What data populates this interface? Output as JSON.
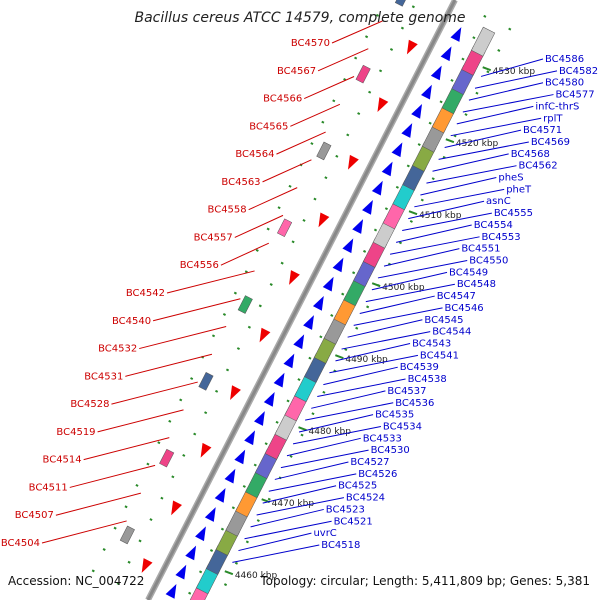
{
  "title": "Bacillus cereus ATCC 14579, complete genome",
  "footer": {
    "accession": "Accession: NC_004722",
    "summary": "Topology: circular; Length: 5,411,809 bp; Genes: 5,381"
  },
  "colors": {
    "reverse_label": "#cc0000",
    "forward_label": "#0000cc",
    "reverse_arrow": "#ee0000",
    "forward_arrow": "#0000ee",
    "backbone": "#888888",
    "tick": "#2a8a2a"
  },
  "ticks": [
    "4530 kbp",
    "4520 kbp",
    "4510 kbp",
    "4500 kbp",
    "4490 kbp",
    "4480 kbp",
    "4470 kbp",
    "4460 kbp"
  ],
  "reverse_labels": [
    "BC4570",
    "BC4567",
    "BC4566",
    "BC4565",
    "BC4564",
    "BC4563",
    "BC4558",
    "BC4557",
    "BC4556",
    "BC4542",
    "BC4540",
    "BC4532",
    "BC4531",
    "BC4528",
    "BC4519",
    "BC4514",
    "BC4511",
    "BC4507",
    "BC4504"
  ],
  "forward_labels": [
    "BC4586",
    "BC4582",
    "BC4580",
    "BC4577",
    "infC-thrS",
    "rplT",
    "BC4571",
    "BC4569",
    "BC4568",
    "BC4562",
    "pheS",
    "pheT",
    "asnC",
    "BC4555",
    "BC4554",
    "BC4553",
    "BC4551",
    "BC4550",
    "BC4549",
    "BC4548",
    "BC4547",
    "BC4546",
    "BC4545",
    "BC4544",
    "BC4543",
    "BC4541",
    "BC4539",
    "BC4538",
    "BC4537",
    "BC4536",
    "BC4535",
    "BC4534",
    "BC4533",
    "BC4530",
    "BC4527",
    "BC4526",
    "BC4525",
    "BC4524",
    "BC4523",
    "BC4521",
    "uvrC",
    "BC4518"
  ]
}
